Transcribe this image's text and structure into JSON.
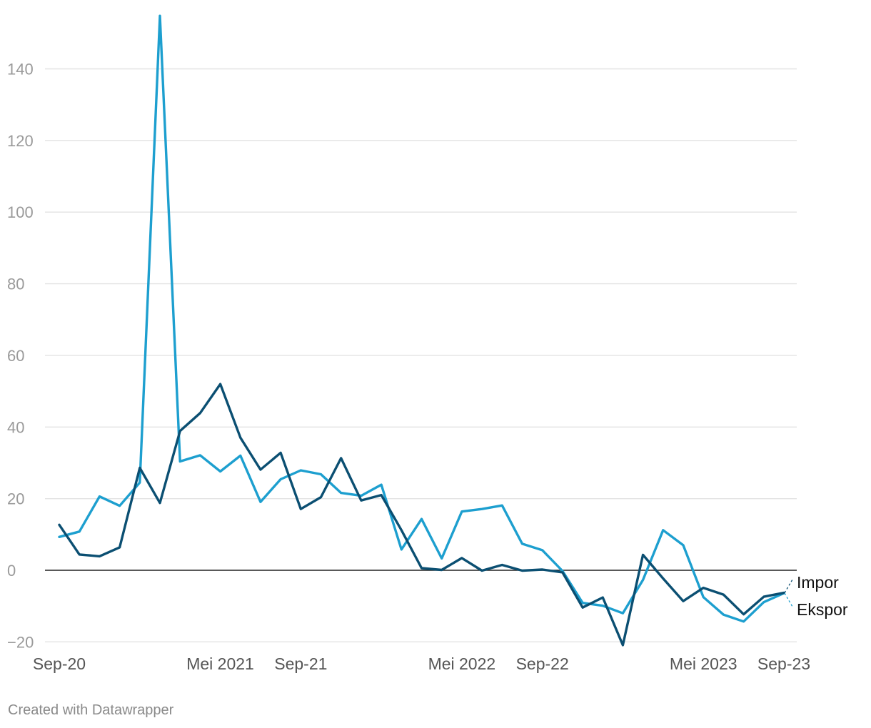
{
  "credit": "Created with Datawrapper",
  "colors": {
    "ekspor": "#1d9fcf",
    "impor": "#0b4f72",
    "grid": "#e3e3e3",
    "zero_line": "#222222"
  },
  "chart_data": {
    "type": "line",
    "title": "",
    "xlabel": "",
    "ylabel": "",
    "ylim": [
      -20,
      155
    ],
    "y_ticks": [
      140,
      120,
      100,
      80,
      60,
      40,
      20,
      0,
      -20
    ],
    "y_tick_labels": [
      "140",
      "120",
      "100",
      "80",
      "60",
      "40",
      "20",
      "0",
      "−20"
    ],
    "x": [
      "2020-09",
      "2020-10",
      "2020-11",
      "2020-12",
      "2021-01",
      "2021-02",
      "2021-03",
      "2021-04",
      "2021-05",
      "2021-06",
      "2021-07",
      "2021-08",
      "2021-09",
      "2021-10",
      "2021-11",
      "2021-12",
      "2022-01",
      "2022-02",
      "2022-03",
      "2022-04",
      "2022-05",
      "2022-06",
      "2022-07",
      "2022-08",
      "2022-09",
      "2022-10",
      "2022-11",
      "2022-12",
      "2023-01",
      "2023-02",
      "2023-03",
      "2023-04",
      "2023-05",
      "2023-06",
      "2023-07",
      "2023-08",
      "2023-09"
    ],
    "x_tick_positions": [
      "2020-09",
      "2021-05",
      "2021-09",
      "2022-05",
      "2022-09",
      "2023-05",
      "2023-09"
    ],
    "x_tick_labels": [
      "Sep-20",
      "Mei 2021",
      "Sep-21",
      "Mei 2022",
      "Sep-22",
      "Mei 2023",
      "Sep-23"
    ],
    "grid": true,
    "legend": "inline-right",
    "series": [
      {
        "name": "Ekspor",
        "values": [
          9.3,
          10.8,
          20.6,
          18.0,
          24.5,
          154.8,
          30.4,
          32.1,
          27.6,
          32.0,
          19.1,
          25.4,
          27.9,
          26.8,
          21.6,
          20.8,
          23.9,
          5.8,
          14.3,
          3.3,
          16.4,
          17.1,
          18.1,
          7.4,
          5.6,
          -0.2,
          -9.1,
          -9.9,
          -12.0,
          -2.7,
          11.2,
          7.0,
          -7.5,
          -12.4,
          -14.3,
          -8.9,
          -6.4
        ]
      },
      {
        "name": "Impor",
        "values": [
          12.7,
          4.4,
          3.9,
          6.4,
          28.6,
          18.8,
          38.9,
          43.9,
          52.0,
          37.0,
          28.1,
          32.8,
          17.1,
          20.4,
          31.3,
          19.5,
          21.0,
          11.2,
          0.6,
          0.1,
          3.4,
          -0.1,
          1.5,
          -0.1,
          0.2,
          -0.6,
          -10.4,
          -7.6,
          -20.9,
          4.3,
          -2.3,
          -8.6,
          -4.9,
          -6.8,
          -12.3,
          -7.4,
          -6.3
        ]
      }
    ]
  }
}
